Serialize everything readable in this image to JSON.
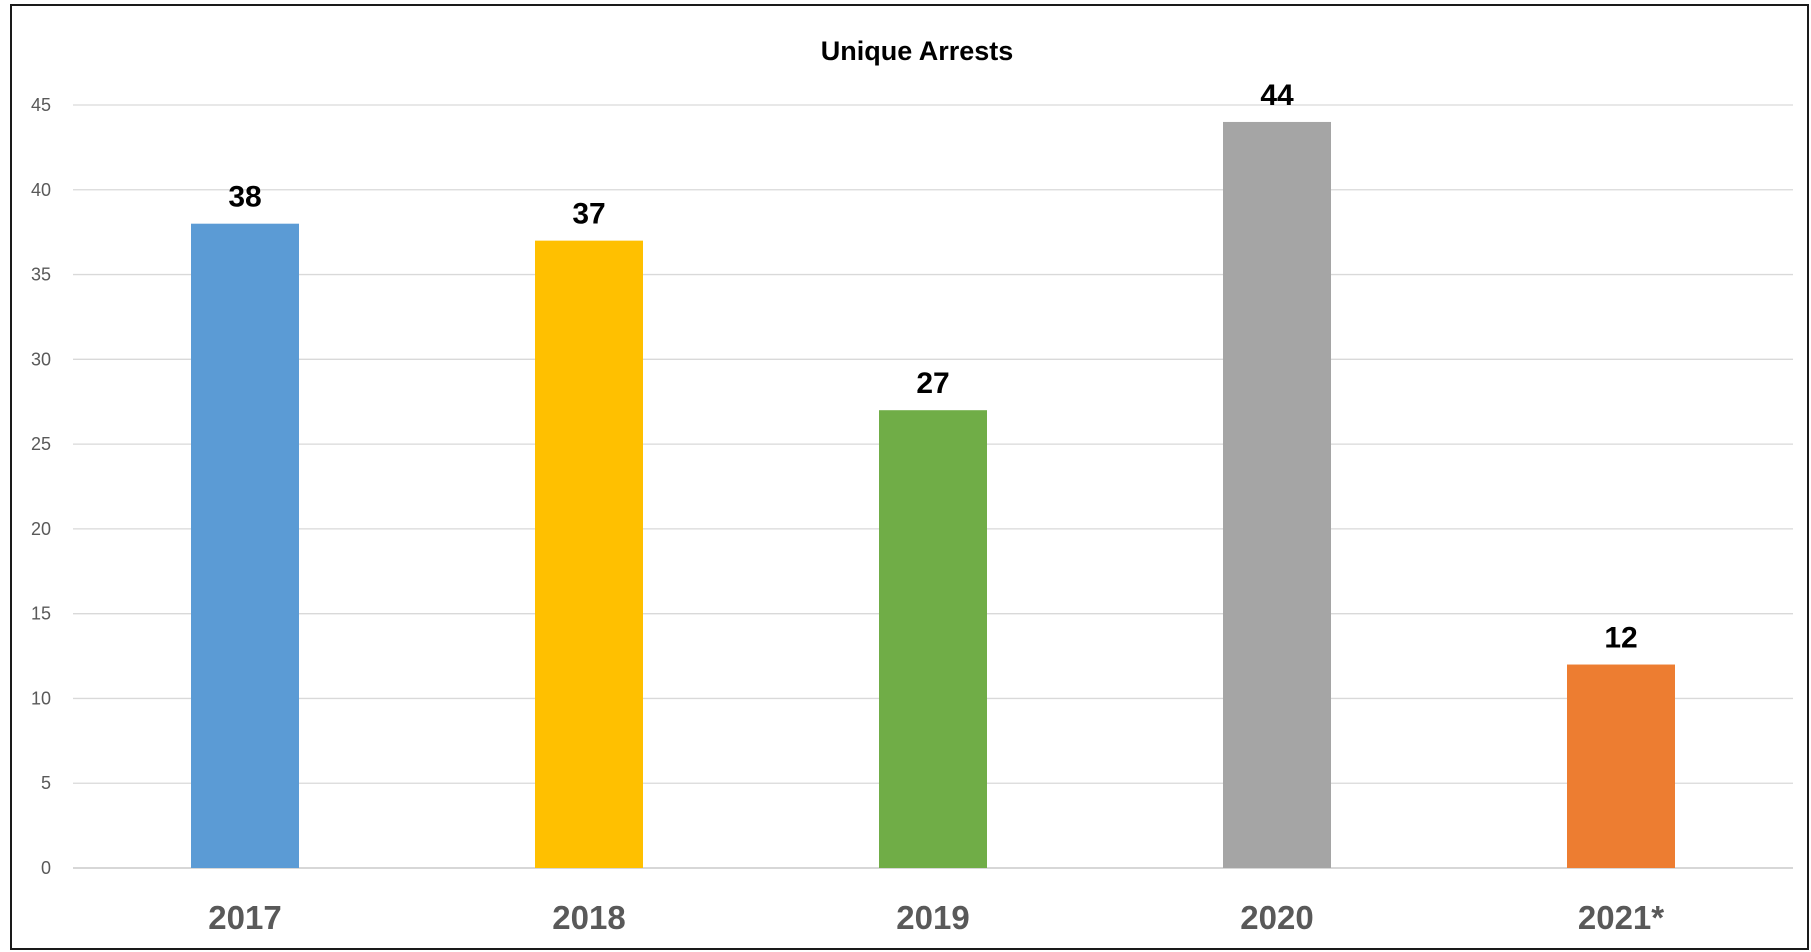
{
  "chart_data": {
    "type": "bar",
    "title": "Unique Arrests",
    "xlabel": "",
    "ylabel": "",
    "categories": [
      "2017",
      "2018",
      "2019",
      "2020",
      "2021*"
    ],
    "values": [
      38,
      37,
      27,
      44,
      12
    ],
    "data_labels": [
      "38",
      "37",
      "27",
      "44",
      "12"
    ],
    "colors": [
      "#5B9BD5",
      "#FFC000",
      "#70AD47",
      "#A5A5A5",
      "#ED7D31"
    ],
    "ylim": [
      0,
      45
    ],
    "yticks": [
      0,
      5,
      10,
      15,
      20,
      25,
      30,
      35,
      40,
      45
    ],
    "grid": true,
    "legend": "none"
  }
}
